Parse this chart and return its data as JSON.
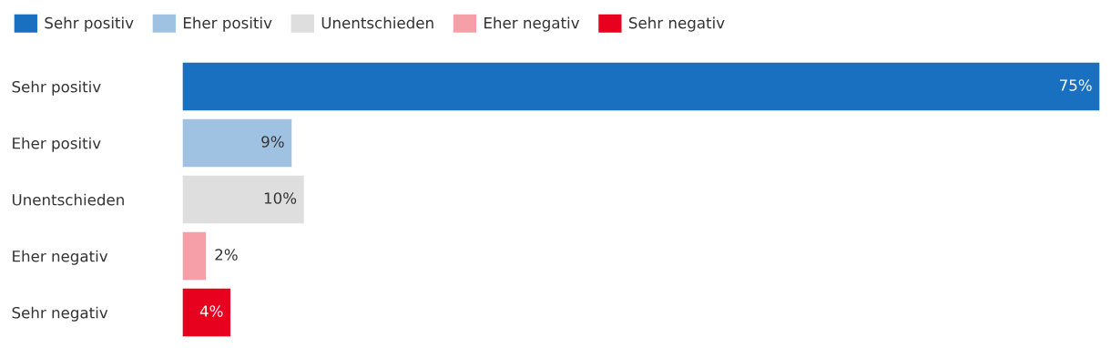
{
  "chart_data": {
    "type": "bar",
    "orientation": "horizontal",
    "categories": [
      "Sehr positiv",
      "Eher positiv",
      "Unentschieden",
      "Eher negativ",
      "Sehr negativ"
    ],
    "series": [
      {
        "name": "Sehr positiv",
        "color": "#1a70c0",
        "values": [
          75,
          null,
          null,
          null,
          null
        ],
        "value_labels": [
          "75%",
          null,
          null,
          null,
          null
        ]
      },
      {
        "name": "Eher positiv",
        "color": "#a0c2e2",
        "values": [
          null,
          9,
          null,
          null,
          null
        ],
        "value_labels": [
          null,
          "9%",
          null,
          null,
          null
        ]
      },
      {
        "name": "Unentschieden",
        "color": "#dedede",
        "values": [
          null,
          null,
          10,
          null,
          null
        ],
        "value_labels": [
          null,
          null,
          "10%",
          null,
          null
        ]
      },
      {
        "name": "Eher negativ",
        "color": "#f79fa9",
        "values": [
          null,
          null,
          null,
          2,
          null
        ],
        "value_labels": [
          null,
          null,
          null,
          "2%",
          null
        ]
      },
      {
        "name": "Sehr negativ",
        "color": "#e8001f",
        "values": [
          null,
          null,
          null,
          null,
          4
        ],
        "value_labels": [
          null,
          null,
          null,
          null,
          "4%"
        ]
      }
    ],
    "legend": "top"
  }
}
